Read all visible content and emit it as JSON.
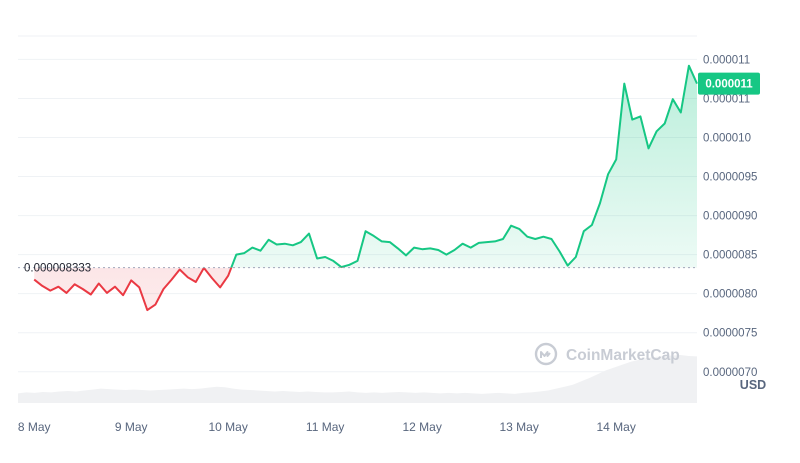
{
  "chart_data": {
    "type": "area",
    "x_ticks": [
      "8 May",
      "9 May",
      "10 May",
      "11 May",
      "12 May",
      "13 May",
      "14 May"
    ],
    "y_ticks": [
      "0.0000070",
      "0.0000075",
      "0.0000080",
      "0.0000085",
      "0.0000090",
      "0.0000095",
      "0.000010",
      "0.000011",
      "0.000011"
    ],
    "y_tick_values": [
      7e-06,
      7.5e-06,
      8e-06,
      8.5e-06,
      9e-06,
      9.5e-06,
      1e-05,
      1.05e-05,
      1.1e-05
    ],
    "ylim": [
      6.6e-06,
      1.13e-05
    ],
    "x_range": [
      "2024-05-07T20:00",
      "2024-05-14T20:00"
    ],
    "baseline_value": 8.3333e-06,
    "baseline_label": "0.000008333",
    "current_price_label": "0.000011",
    "current_price_value": 1.069e-05,
    "unit_label": "USD",
    "watermark": "CoinMarketCap",
    "colors": {
      "up": "#16c784",
      "down": "#ea3943",
      "label_bg": "#16c784"
    },
    "series": [
      {
        "x": [
          "2024-05-08T00:00",
          "2024-05-08T02:00",
          "2024-05-08T04:00",
          "2024-05-08T06:00",
          "2024-05-08T08:00",
          "2024-05-08T10:00",
          "2024-05-08T12:00",
          "2024-05-08T14:00",
          "2024-05-08T16:00",
          "2024-05-08T18:00",
          "2024-05-08T20:00",
          "2024-05-08T22:00",
          "2024-05-09T00:00",
          "2024-05-09T02:00",
          "2024-05-09T04:00",
          "2024-05-09T06:00",
          "2024-05-09T08:00",
          "2024-05-09T10:00",
          "2024-05-09T12:00",
          "2024-05-09T14:00",
          "2024-05-09T16:00",
          "2024-05-09T18:00",
          "2024-05-09T20:00",
          "2024-05-09T22:00",
          "2024-05-10T00:00",
          "2024-05-10T02:00",
          "2024-05-10T04:00",
          "2024-05-10T06:00",
          "2024-05-10T08:00",
          "2024-05-10T10:00",
          "2024-05-10T12:00",
          "2024-05-10T14:00",
          "2024-05-10T16:00",
          "2024-05-10T18:00",
          "2024-05-10T20:00",
          "2024-05-10T22:00",
          "2024-05-11T00:00",
          "2024-05-11T02:00",
          "2024-05-11T04:00",
          "2024-05-11T06:00",
          "2024-05-11T08:00",
          "2024-05-11T10:00",
          "2024-05-11T12:00",
          "2024-05-11T14:00",
          "2024-05-11T16:00",
          "2024-05-11T18:00",
          "2024-05-11T20:00",
          "2024-05-11T22:00",
          "2024-05-12T00:00",
          "2024-05-12T02:00",
          "2024-05-12T04:00",
          "2024-05-12T06:00",
          "2024-05-12T08:00",
          "2024-05-12T10:00",
          "2024-05-12T12:00",
          "2024-05-12T14:00",
          "2024-05-12T16:00",
          "2024-05-12T18:00",
          "2024-05-12T20:00",
          "2024-05-12T22:00",
          "2024-05-13T00:00",
          "2024-05-13T02:00",
          "2024-05-13T04:00",
          "2024-05-13T06:00",
          "2024-05-13T08:00",
          "2024-05-13T10:00",
          "2024-05-13T12:00",
          "2024-05-13T14:00",
          "2024-05-13T16:00",
          "2024-05-13T18:00",
          "2024-05-13T20:00",
          "2024-05-13T22:00",
          "2024-05-14T00:00",
          "2024-05-14T02:00",
          "2024-05-14T04:00",
          "2024-05-14T06:00",
          "2024-05-14T08:00",
          "2024-05-14T10:00",
          "2024-05-14T12:00",
          "2024-05-14T14:00",
          "2024-05-14T16:00",
          "2024-05-14T18:00",
          "2024-05-14T20:00"
        ],
        "values": [
          8.18e-06,
          8.1e-06,
          8.04e-06,
          8.09e-06,
          8.01e-06,
          8.12e-06,
          8.06e-06,
          7.99e-06,
          8.13e-06,
          8.01e-06,
          8.09e-06,
          7.98e-06,
          8.17e-06,
          8.08e-06,
          7.79e-06,
          7.86e-06,
          8.06e-06,
          8.18e-06,
          8.31e-06,
          8.21e-06,
          8.15e-06,
          8.33e-06,
          8.2e-06,
          8.08e-06,
          8.23e-06,
          8.5e-06,
          8.52e-06,
          8.59e-06,
          8.55e-06,
          8.69e-06,
          8.63e-06,
          8.64e-06,
          8.62e-06,
          8.66e-06,
          8.77e-06,
          8.45e-06,
          8.47e-06,
          8.42e-06,
          8.34e-06,
          8.37e-06,
          8.42e-06,
          8.8e-06,
          8.74e-06,
          8.67e-06,
          8.66e-06,
          8.58e-06,
          8.49e-06,
          8.59e-06,
          8.57e-06,
          8.58e-06,
          8.56e-06,
          8.5e-06,
          8.56e-06,
          8.64e-06,
          8.59e-06,
          8.65e-06,
          8.66e-06,
          8.67e-06,
          8.7e-06,
          8.87e-06,
          8.83e-06,
          8.73e-06,
          8.7e-06,
          8.73e-06,
          8.7e-06,
          8.54e-06,
          8.36e-06,
          8.47e-06,
          8.8e-06,
          8.88e-06,
          9.16e-06,
          9.53e-06,
          9.72e-06,
          1.069e-05,
          1.023e-05,
          1.027e-05,
          9.86e-06,
          1.008e-05,
          1.018e-05,
          1.049e-05,
          1.032e-05,
          1.092e-05,
          1.069e-05
        ]
      }
    ],
    "volume": [
      0.2,
      0.22,
      0.21,
      0.23,
      0.22,
      0.24,
      0.25,
      0.24,
      0.26,
      0.28,
      0.3,
      0.29,
      0.28,
      0.27,
      0.28,
      0.27,
      0.26,
      0.27,
      0.28,
      0.29,
      0.3,
      0.29,
      0.3,
      0.32,
      0.34,
      0.33,
      0.3,
      0.28,
      0.27,
      0.26,
      0.25,
      0.24,
      0.25,
      0.24,
      0.23,
      0.24,
      0.23,
      0.22,
      0.22,
      0.23,
      0.24,
      0.22,
      0.21,
      0.22,
      0.21,
      0.22,
      0.23,
      0.22,
      0.21,
      0.22,
      0.21,
      0.2,
      0.21,
      0.2,
      0.21,
      0.2,
      0.19,
      0.2,
      0.21,
      0.2,
      0.19,
      0.21,
      0.22,
      0.24,
      0.26,
      0.3,
      0.34,
      0.38,
      0.45,
      0.52,
      0.6,
      0.68,
      0.74,
      0.8,
      0.86,
      0.9,
      0.94,
      0.96,
      0.98,
      0.99,
      1.0,
      0.98,
      0.97
    ]
  }
}
